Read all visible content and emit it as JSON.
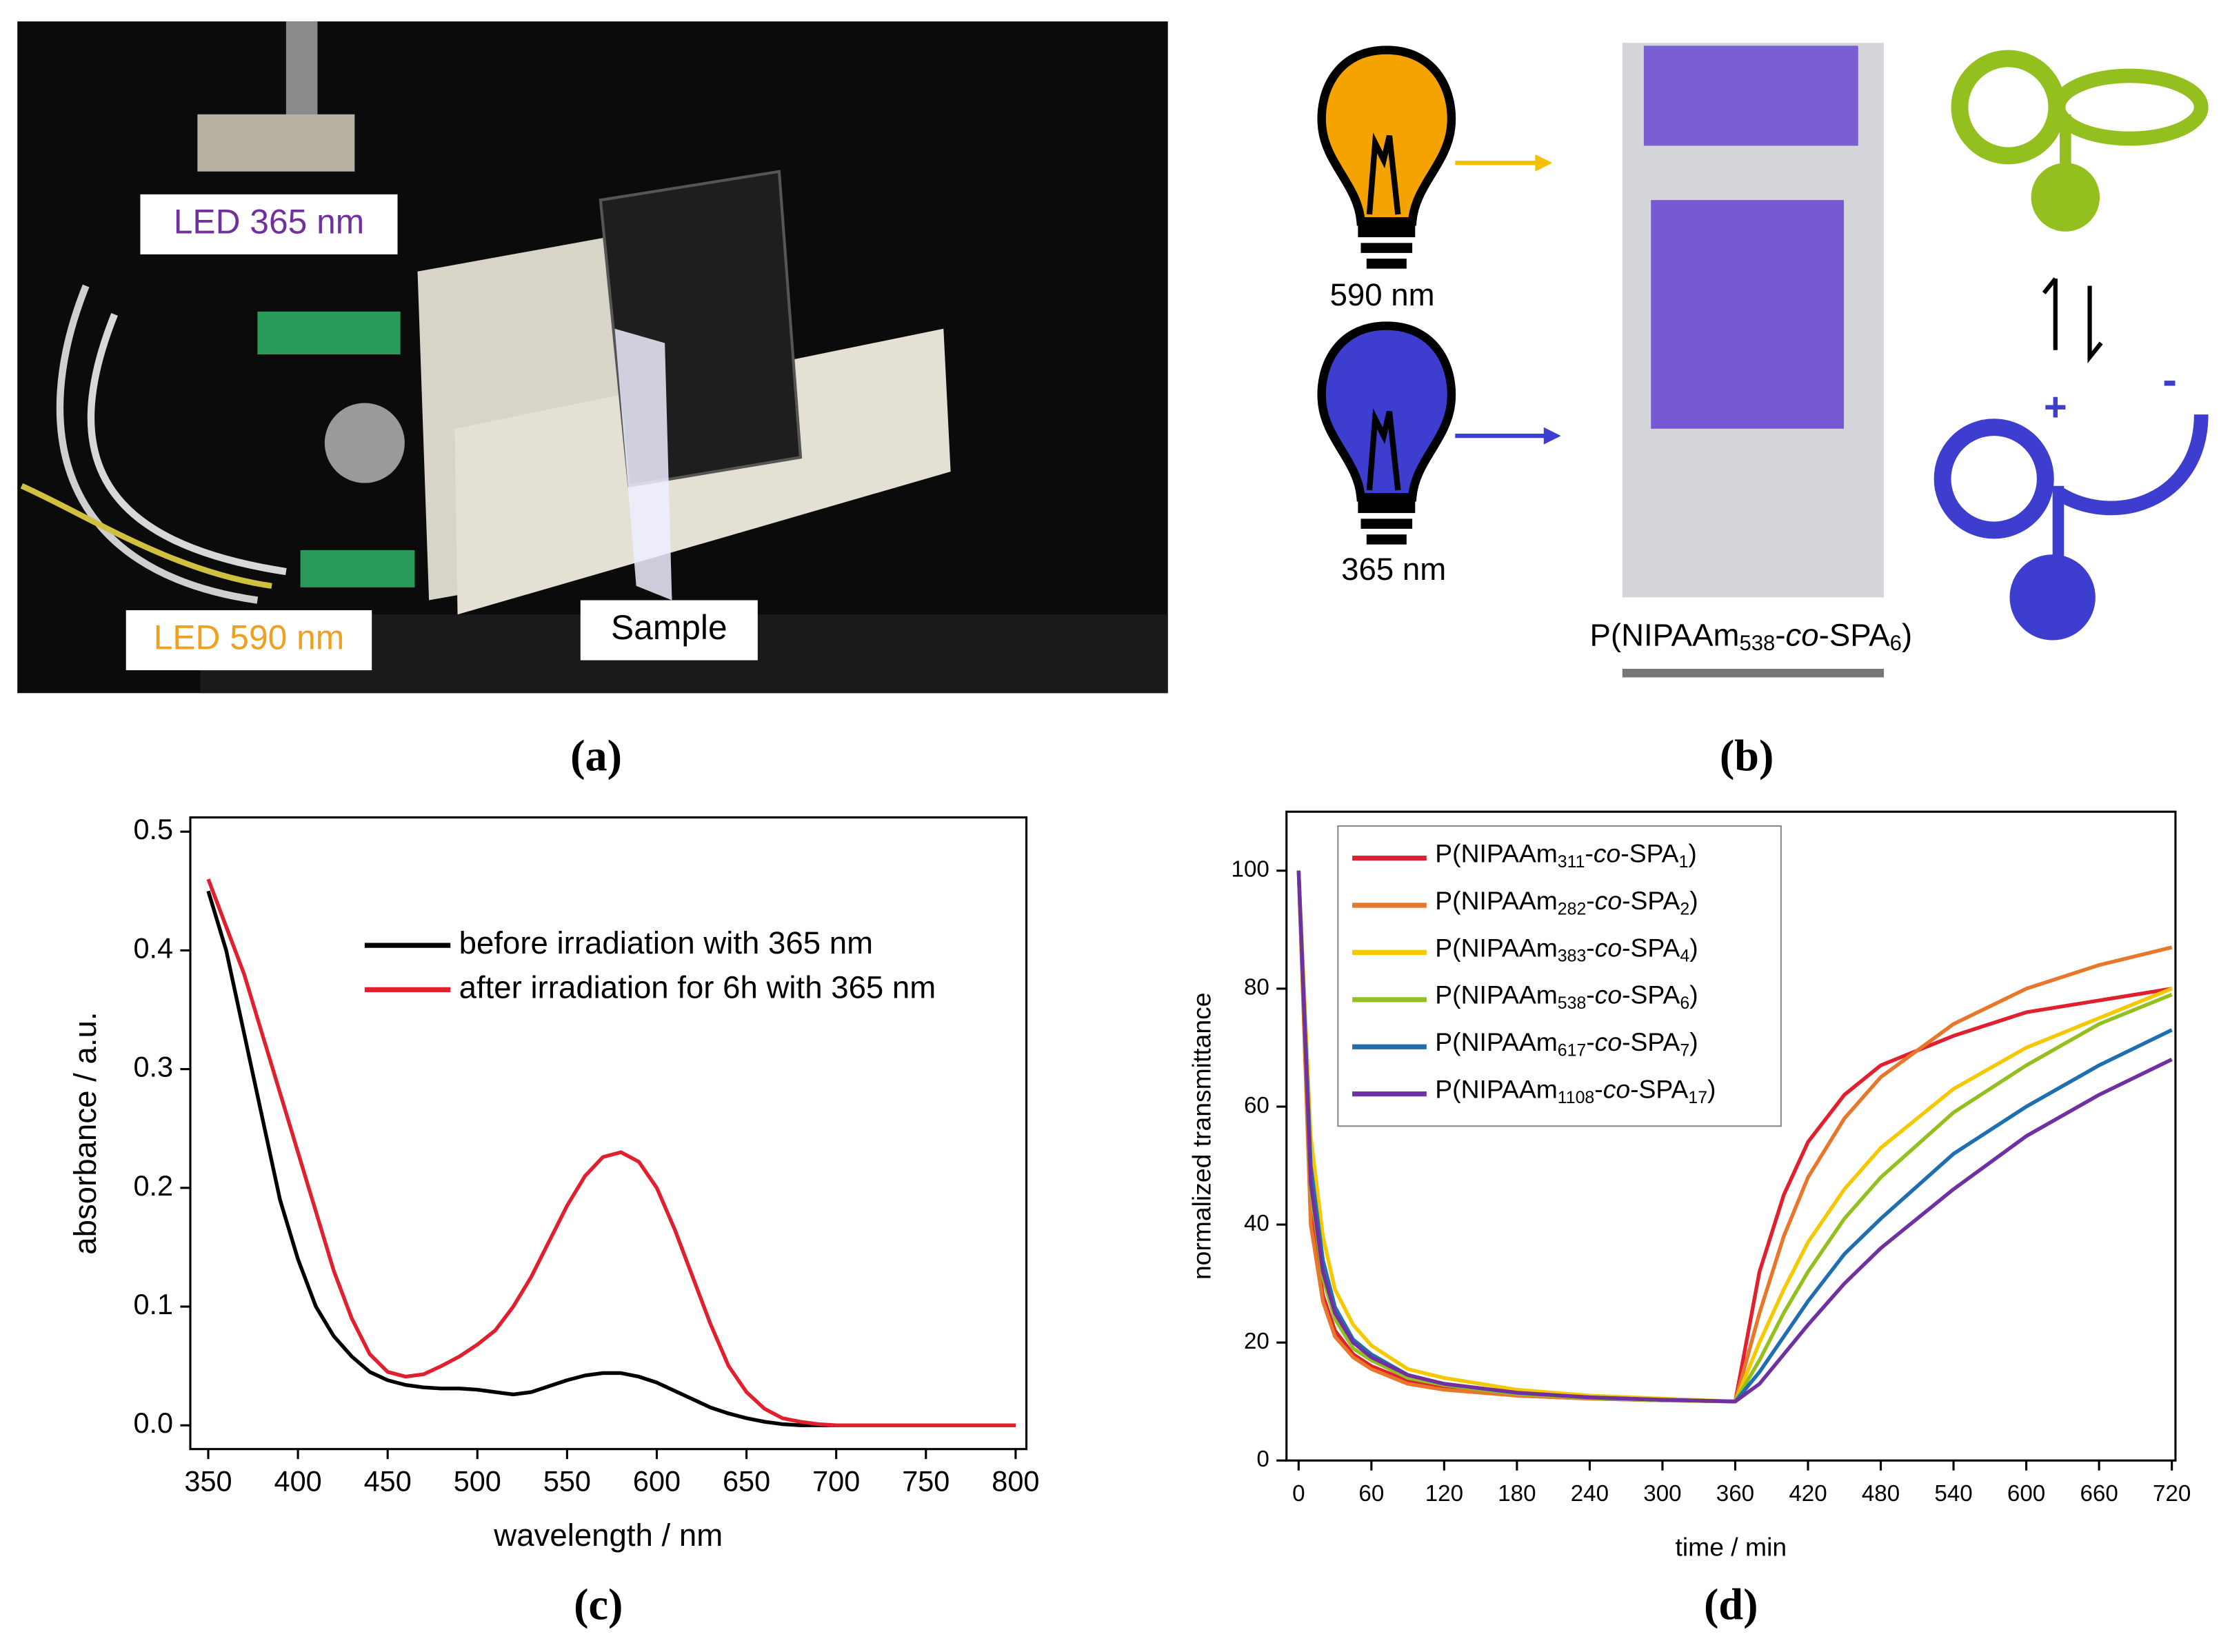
{
  "panels": {
    "a": {
      "caption": "(a)",
      "labels": [
        "LED 365 nm",
        "LED 590 nm",
        "Sample"
      ]
    },
    "b": {
      "caption": "(b)",
      "lamps": [
        "590 nm",
        "365 nm"
      ],
      "sample": [
        "P(NIPAAm",
        "538",
        "-",
        "co",
        "-SPA",
        "6",
        ")"
      ]
    }
  },
  "chart_data": [
    {
      "type": "line",
      "caption": "(c)",
      "xlabel": "wavelength / nm",
      "ylabel": "absorbance / a.u.",
      "x": [
        350,
        360,
        370,
        380,
        390,
        400,
        410,
        420,
        430,
        440,
        450,
        460,
        470,
        480,
        490,
        500,
        510,
        520,
        530,
        540,
        550,
        560,
        570,
        580,
        590,
        600,
        610,
        620,
        630,
        640,
        650,
        660,
        670,
        680,
        690,
        700,
        710,
        720,
        730,
        740,
        750,
        760,
        770,
        780,
        790,
        800
      ],
      "xlim": [
        340,
        806
      ],
      "ylim": [
        -0.02,
        0.512
      ],
      "xticks": [
        350,
        400,
        450,
        500,
        550,
        600,
        650,
        700,
        750,
        800
      ],
      "yticks": [
        {
          "value": 0,
          "label": "0.0"
        },
        0.1,
        0.2,
        0.3,
        0.4,
        0.5
      ],
      "legend": "upper right",
      "series": [
        {
          "name": "before irradiation with 365 nm",
          "color": "#000000",
          "values": [
            0.45,
            0.4,
            0.33,
            0.26,
            0.19,
            0.14,
            0.1,
            0.075,
            0.058,
            0.045,
            0.038,
            0.034,
            0.032,
            0.031,
            0.031,
            0.03,
            0.028,
            0.026,
            0.028,
            0.033,
            0.038,
            0.042,
            0.044,
            0.044,
            0.041,
            0.036,
            0.029,
            0.022,
            0.015,
            0.01,
            0.006,
            0.003,
            0.001,
            0,
            0,
            0,
            0,
            0,
            0,
            0,
            0,
            0,
            0,
            0,
            0,
            0
          ]
        },
        {
          "name": "after irradiation for 6h with 365 nm",
          "color": "#e0202e",
          "values": [
            0.46,
            0.42,
            0.38,
            0.33,
            0.28,
            0.23,
            0.18,
            0.13,
            0.09,
            0.06,
            0.045,
            0.041,
            0.043,
            0.05,
            0.058,
            0.068,
            0.08,
            0.1,
            0.125,
            0.155,
            0.185,
            0.21,
            0.226,
            0.23,
            0.222,
            0.2,
            0.165,
            0.125,
            0.085,
            0.05,
            0.028,
            0.014,
            0.006,
            0.003,
            0.001,
            0,
            0,
            0,
            0,
            0,
            0,
            0,
            0,
            0,
            0,
            0
          ]
        }
      ]
    },
    {
      "type": "line",
      "caption": "(d)",
      "xlabel": "time / min",
      "ylabel": "normalized transmittance",
      "x": [
        0,
        10,
        20,
        30,
        45,
        60,
        90,
        120,
        180,
        240,
        300,
        360,
        380,
        400,
        420,
        450,
        480,
        540,
        600,
        660,
        720
      ],
      "xlim": [
        -10,
        723
      ],
      "ylim": [
        0,
        110
      ],
      "xticks": [
        0,
        60,
        120,
        180,
        240,
        300,
        360,
        420,
        480,
        540,
        600,
        660,
        720
      ],
      "yticks": [
        0,
        20,
        40,
        60,
        80,
        100
      ],
      "legend": "upper left",
      "series": [
        {
          "name": [
            "P(NIPAAm",
            "311",
            "-",
            "co",
            "-SPA",
            "1",
            ")"
          ],
          "color": "#e0202e",
          "values": [
            100,
            42,
            28,
            22,
            18,
            16,
            13.5,
            12.5,
            11,
            10.5,
            10.2,
            10,
            32,
            45,
            54,
            62,
            67,
            72,
            76,
            78,
            80
          ]
        },
        {
          "name": [
            "P(NIPAAm",
            "282",
            "-",
            "co",
            "-SPA",
            "2",
            ")"
          ],
          "color": "#e8762b",
          "values": [
            100,
            40,
            27,
            21,
            17.5,
            15.5,
            13,
            12,
            11,
            10.5,
            10.2,
            10,
            25,
            38,
            48,
            58,
            65,
            74,
            80,
            84,
            87
          ]
        },
        {
          "name": [
            "P(NIPAAm",
            "383",
            "-",
            "co",
            "-SPA",
            "4",
            ")"
          ],
          "color": "#f5c800",
          "values": [
            100,
            55,
            38,
            29,
            23,
            19.5,
            15.5,
            14,
            12,
            11,
            10.5,
            10,
            20,
            29,
            37,
            46,
            53,
            63,
            70,
            75,
            80
          ]
        },
        {
          "name": [
            "P(NIPAAm",
            "538",
            "-",
            "co",
            "-SPA",
            "6",
            ")"
          ],
          "color": "#93c01f",
          "values": [
            100,
            46,
            31,
            24,
            19,
            17,
            14,
            12.8,
            11.3,
            10.6,
            10.2,
            10,
            17,
            25,
            32,
            41,
            48,
            59,
            67,
            74,
            79
          ]
        },
        {
          "name": [
            "P(NIPAAm",
            "617",
            "-",
            "co",
            "-SPA",
            "7",
            ")"
          ],
          "color": "#1f6fb0",
          "values": [
            100,
            50,
            34,
            26,
            20.5,
            18,
            14.5,
            13,
            11.5,
            10.7,
            10.3,
            10,
            15,
            21,
            27,
            35,
            41,
            52,
            60,
            67,
            73
          ]
        },
        {
          "name": [
            "P(NIPAAm",
            "1108",
            "-",
            "co",
            "-SPA",
            "17",
            ")"
          ],
          "color": "#7030a0",
          "values": [
            100,
            47,
            32,
            25,
            20,
            17.5,
            14.5,
            13,
            11.5,
            10.7,
            10.3,
            10,
            13,
            18,
            23,
            30,
            36,
            46,
            55,
            62,
            68
          ]
        }
      ]
    }
  ]
}
